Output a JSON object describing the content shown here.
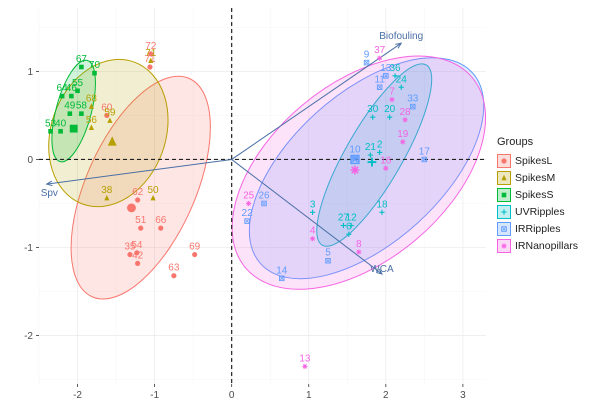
{
  "chart_data": {
    "type": "scatter",
    "title": "",
    "xlabel": "",
    "ylabel": "",
    "xlim": [
      -2.5,
      3.3
    ],
    "ylim": [
      -2.55,
      1.72
    ],
    "x_ticks": [
      -2,
      -1,
      0,
      1,
      2,
      3
    ],
    "y_ticks": [
      -2,
      -1,
      0,
      1
    ],
    "grid": true,
    "legend_position": "right",
    "legend_title": "Groups",
    "series": [
      {
        "name": "SpikesL",
        "color": "#F8766D",
        "marker": "circle",
        "points": [
          {
            "label": "72",
            "x": -1.05,
            "y": 1.2
          },
          {
            "label": "71",
            "x": -1.06,
            "y": 1.05
          },
          {
            "label": "60",
            "x": -1.62,
            "y": 0.5
          },
          {
            "label": "62",
            "x": -1.22,
            "y": -0.46
          },
          {
            "label": "51",
            "x": -1.18,
            "y": -0.78
          },
          {
            "label": "66",
            "x": -0.92,
            "y": -0.78
          },
          {
            "label": "69",
            "x": -0.48,
            "y": -1.08
          },
          {
            "label": "35",
            "x": -1.32,
            "y": -1.08
          },
          {
            "label": "54",
            "x": -1.23,
            "y": -1.06
          },
          {
            "label": "42",
            "x": -1.22,
            "y": -1.18
          },
          {
            "label": "63",
            "x": -0.75,
            "y": -1.32
          }
        ]
      },
      {
        "name": "SpikesM",
        "color": "#B79F00",
        "marker": "triangle",
        "points": [
          {
            "label": "71",
            "x": -1.05,
            "y": 1.12
          },
          {
            "label": "68",
            "x": -1.82,
            "y": 0.6
          },
          {
            "label": "59",
            "x": -1.58,
            "y": 0.44
          },
          {
            "label": "56",
            "x": -1.82,
            "y": 0.36
          },
          {
            "label": "38",
            "x": -1.62,
            "y": -0.44
          },
          {
            "label": "50",
            "x": -1.02,
            "y": -0.44
          }
        ]
      },
      {
        "name": "SpikesS",
        "color": "#00BA38",
        "marker": "square",
        "points": [
          {
            "label": "67",
            "x": -1.95,
            "y": 1.05
          },
          {
            "label": "70",
            "x": -1.78,
            "y": 0.98
          },
          {
            "label": "55",
            "x": -2.0,
            "y": 0.78
          },
          {
            "label": "64",
            "x": -2.2,
            "y": 0.72
          },
          {
            "label": "46",
            "x": -2.08,
            "y": 0.72
          },
          {
            "label": "49",
            "x": -2.1,
            "y": 0.52
          },
          {
            "label": "58",
            "x": -1.95,
            "y": 0.52
          },
          {
            "label": "53",
            "x": -2.35,
            "y": 0.32
          },
          {
            "label": "40",
            "x": -2.22,
            "y": 0.32
          }
        ]
      },
      {
        "name": "UVRipples",
        "color": "#00BFC4",
        "marker": "plus",
        "points": [
          {
            "label": "36",
            "x": 2.12,
            "y": 0.95
          },
          {
            "label": "24",
            "x": 2.2,
            "y": 0.82
          },
          {
            "label": "30",
            "x": 1.83,
            "y": 0.48
          },
          {
            "label": "20",
            "x": 2.05,
            "y": 0.48
          },
          {
            "label": "2",
            "x": 1.92,
            "y": 0.08
          },
          {
            "label": "21",
            "x": 1.8,
            "y": 0.05
          },
          {
            "label": "18",
            "x": 1.95,
            "y": -0.6
          },
          {
            "label": "3",
            "x": 1.05,
            "y": -0.6
          },
          {
            "label": "27",
            "x": 1.45,
            "y": -0.75
          },
          {
            "label": "6",
            "x": 1.52,
            "y": -0.85
          },
          {
            "label": "12",
            "x": 1.55,
            "y": -0.75
          }
        ]
      },
      {
        "name": "IRRipples",
        "color": "#619CFF",
        "marker": "boxx",
        "points": [
          {
            "label": "9",
            "x": 1.75,
            "y": 1.1
          },
          {
            "label": "13",
            "x": 2.0,
            "y": 0.95
          },
          {
            "label": "11",
            "x": 1.92,
            "y": 0.82
          },
          {
            "label": "33",
            "x": 2.35,
            "y": 0.6
          },
          {
            "label": "17",
            "x": 2.5,
            "y": 0.0
          },
          {
            "label": "10",
            "x": 1.6,
            "y": 0.02
          },
          {
            "label": "26",
            "x": 0.42,
            "y": -0.5
          },
          {
            "label": "22",
            "x": 0.2,
            "y": -0.7
          },
          {
            "label": "14",
            "x": 0.65,
            "y": -1.35
          },
          {
            "label": "5",
            "x": 1.25,
            "y": -1.15
          }
        ]
      },
      {
        "name": "IRNanopillars",
        "color": "#F564E3",
        "marker": "star",
        "points": [
          {
            "label": "37",
            "x": 1.92,
            "y": 1.15
          },
          {
            "label": "7",
            "x": 2.08,
            "y": 0.68
          },
          {
            "label": "28",
            "x": 2.25,
            "y": 0.45
          },
          {
            "label": "19",
            "x": 2.22,
            "y": 0.2
          },
          {
            "label": "16",
            "x": 2.0,
            "y": -0.1
          },
          {
            "label": "25",
            "x": 0.22,
            "y": -0.5
          },
          {
            "label": "4",
            "x": 1.05,
            "y": -0.9
          },
          {
            "label": "8",
            "x": 1.65,
            "y": -1.05
          },
          {
            "label": "13",
            "x": 0.95,
            "y": -2.35
          }
        ]
      }
    ],
    "centroids": [
      {
        "series": "SpikesL",
        "x": -1.3,
        "y": -0.55
      },
      {
        "series": "SpikesM",
        "x": -1.55,
        "y": 0.2
      },
      {
        "series": "SpikesS",
        "x": -2.05,
        "y": 0.35
      },
      {
        "series": "UVRipples",
        "x": 1.82,
        "y": -0.03
      },
      {
        "series": "IRRipples",
        "x": 1.6,
        "y": 0.0
      },
      {
        "series": "IRNanopillars",
        "x": 1.6,
        "y": -0.12
      }
    ],
    "ellipses": [
      {
        "series": "SpikesL",
        "cx": -1.18,
        "cy": -0.32,
        "rx": 1.55,
        "ry": 0.62,
        "angle_deg": 66
      },
      {
        "series": "SpikesM",
        "cx": -1.6,
        "cy": 0.3,
        "rx": 0.98,
        "ry": 0.65,
        "angle_deg": 70
      },
      {
        "series": "SpikesS",
        "cx": -2.05,
        "cy": 0.55,
        "rx": 0.68,
        "ry": 0.2,
        "angle_deg": 75
      },
      {
        "series": "UVRipples",
        "cx": 1.85,
        "cy": 0.05,
        "rx": 1.35,
        "ry": 0.32,
        "angle_deg": 60
      },
      {
        "series": "IRRipples",
        "cx": 1.75,
        "cy": -0.1,
        "rx": 1.85,
        "ry": 0.85,
        "angle_deg": 42
      },
      {
        "series": "IRNanopillars",
        "cx": 1.65,
        "cy": -0.15,
        "rx": 1.92,
        "ry": 1.0,
        "angle_deg": 40
      }
    ],
    "vectors": [
      {
        "label": "Biofouling",
        "x": 2.2,
        "y": 1.32
      },
      {
        "label": "Spv",
        "x": -2.4,
        "y": -0.28
      },
      {
        "label": "WCA",
        "x": 1.95,
        "y": -1.3
      }
    ],
    "reference_lines": {
      "x": 0,
      "y": 0
    }
  }
}
